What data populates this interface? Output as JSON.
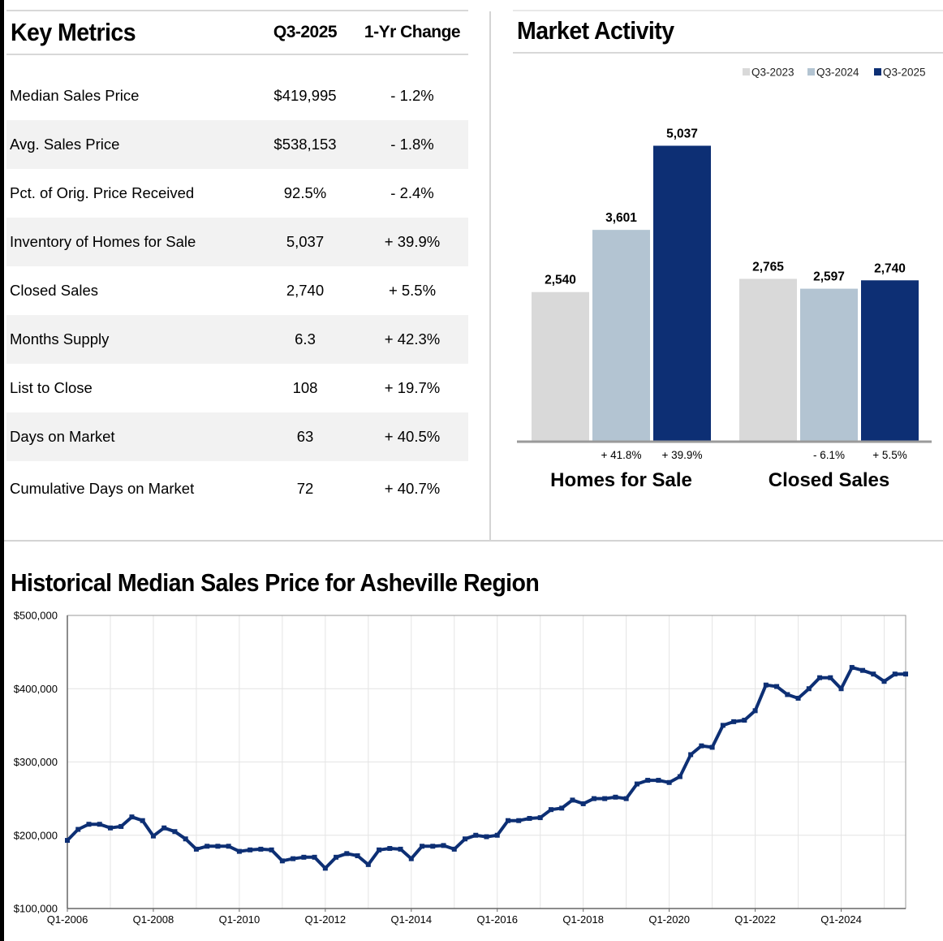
{
  "key_metrics": {
    "title": "Key Metrics",
    "col_period": "Q3-2025",
    "col_change": "1-Yr Change",
    "rows": [
      {
        "label": "Median Sales Price",
        "value": "$419,995",
        "change": "- 1.2%"
      },
      {
        "label": "Avg. Sales Price",
        "value": "$538,153",
        "change": "- 1.8%"
      },
      {
        "label": "Pct. of Orig. Price Received",
        "value": "92.5%",
        "change": "- 2.4%"
      },
      {
        "label": "Inventory of Homes for Sale",
        "value": "5,037",
        "change": "+ 39.9%"
      },
      {
        "label": "Closed Sales",
        "value": "2,740",
        "change": "+ 5.5%"
      },
      {
        "label": "Months Supply",
        "value": "6.3",
        "change": "+ 42.3%"
      },
      {
        "label": "List to Close",
        "value": "108",
        "change": "+ 19.7%"
      },
      {
        "label": "Days on Market",
        "value": "63",
        "change": "+ 40.5%"
      },
      {
        "label": "Cumulative Days on Market",
        "value": "72",
        "change": "+ 40.7%"
      }
    ]
  },
  "colors": {
    "q3_2023": "#d9d9d9",
    "q3_2024": "#b3c4d2",
    "q3_2025": "#0d2f74",
    "line": "#0d2f74",
    "grid": "#e4e4e4"
  },
  "chart_data": [
    {
      "type": "bar",
      "title": "Market Activity",
      "legend": [
        "Q3-2023",
        "Q3-2024",
        "Q3-2025"
      ],
      "legend_position": "top-right",
      "ylim": [
        0,
        6000
      ],
      "groups": [
        {
          "category": "Homes for Sale",
          "values": [
            2540,
            3601,
            5037
          ],
          "labels": [
            "2,540",
            "3,601",
            "5,037"
          ],
          "changes": [
            "",
            "+ 41.8%",
            "+ 39.9%"
          ]
        },
        {
          "category": "Closed Sales",
          "values": [
            2765,
            2597,
            2740
          ],
          "labels": [
            "2,765",
            "2,597",
            "2,740"
          ],
          "changes": [
            "",
            "- 6.1%",
            "+ 5.5%"
          ]
        }
      ]
    },
    {
      "type": "line",
      "title": "Historical Median Sales Price for Asheville Region",
      "ylim": [
        100000,
        500000
      ],
      "yticks": [
        100000,
        200000,
        300000,
        400000,
        500000
      ],
      "ytick_labels": [
        "$100,000",
        "$200,000",
        "$300,000",
        "$400,000",
        "$500,000"
      ],
      "xtick_labels": [
        "Q1-2006",
        "Q1-2008",
        "Q1-2010",
        "Q1-2012",
        "Q1-2014",
        "Q1-2016",
        "Q1-2018",
        "Q1-2020",
        "Q1-2022",
        "Q1-2024"
      ],
      "x_start": "Q1-2006",
      "x_end": "Q3-2025",
      "grid": true,
      "values": [
        193000,
        208000,
        215000,
        215000,
        210000,
        212000,
        225000,
        220000,
        199000,
        210000,
        205000,
        195000,
        181000,
        185000,
        185000,
        185000,
        178000,
        180000,
        181000,
        180000,
        165000,
        168000,
        170000,
        170000,
        155000,
        170000,
        175000,
        172000,
        160000,
        180000,
        182000,
        181000,
        168000,
        185000,
        185000,
        186000,
        181000,
        195000,
        200000,
        198000,
        200000,
        220000,
        220000,
        223000,
        224000,
        235000,
        237000,
        248000,
        243000,
        250000,
        250000,
        252000,
        250000,
        270000,
        275000,
        275000,
        272000,
        280000,
        310000,
        322000,
        320000,
        350000,
        355000,
        357000,
        370000,
        405000,
        403000,
        392000,
        387000,
        400000,
        415000,
        415000,
        400000,
        429000,
        425000,
        420000,
        410000,
        420000,
        420000
      ]
    }
  ]
}
